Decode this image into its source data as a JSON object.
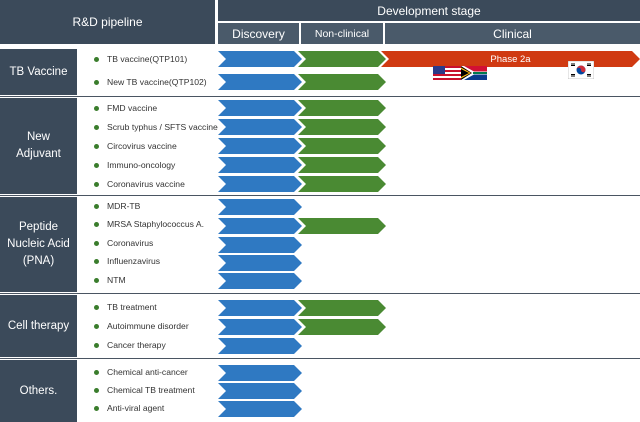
{
  "header": {
    "pipeline": "R&D pipeline",
    "stage": "Development stage",
    "discovery": "Discovery",
    "nonclinical": "Non-clinical",
    "clinical": "Clinical"
  },
  "categories": [
    {
      "label": "TB Vaccine",
      "items": [
        {
          "name": "TB vaccine(QTP101)",
          "stage": "Clinical"
        },
        {
          "name": "New TB vaccine(QTP102)",
          "stage": "Non-clinical"
        }
      ]
    },
    {
      "label": "New Adjuvant",
      "items": [
        {
          "name": "FMD vaccine",
          "stage": "Non-clinical"
        },
        {
          "name": "Scrub typhus / SFTS vaccine",
          "stage": "Non-clinical"
        },
        {
          "name": "Circovirus vaccine",
          "stage": "Non-clinical"
        },
        {
          "name": "Immuno-oncology",
          "stage": "Non-clinical"
        },
        {
          "name": "Coronavirus vaccine",
          "stage": "Non-clinical"
        }
      ]
    },
    {
      "label": "Peptide Nucleic Acid (PNA)",
      "items": [
        {
          "name": "MDR-TB",
          "stage": "Discovery"
        },
        {
          "name": "MRSA Staphylococcus A.",
          "stage": "Non-clinical"
        },
        {
          "name": "Coronavirus",
          "stage": "Discovery"
        },
        {
          "name": "Influenzavirus",
          "stage": "Discovery"
        },
        {
          "name": "NTM",
          "stage": "Discovery"
        }
      ]
    },
    {
      "label": "Cell therapy",
      "items": [
        {
          "name": "TB treatment",
          "stage": "Non-clinical"
        },
        {
          "name": "Autoimmune disorder",
          "stage": "Non-clinical"
        },
        {
          "name": "Cancer therapy",
          "stage": "Discovery"
        }
      ]
    },
    {
      "label": "Others.",
      "items": [
        {
          "name": "Chemical anti-cancer",
          "stage": "Discovery"
        },
        {
          "name": "Chemical TB treatment",
          "stage": "Discovery"
        },
        {
          "name": "Anti-viral agent",
          "stage": "Discovery"
        }
      ]
    }
  ],
  "phase_label": "Phase 2a",
  "flags": [
    "us-flag-icon",
    "south-africa-flag-icon",
    "korea-flag-icon"
  ],
  "colors": {
    "discovery": "#2f79c2",
    "nonclinical": "#4a8a33",
    "clinical": "#d03a12",
    "header": "#3b4a5a"
  }
}
